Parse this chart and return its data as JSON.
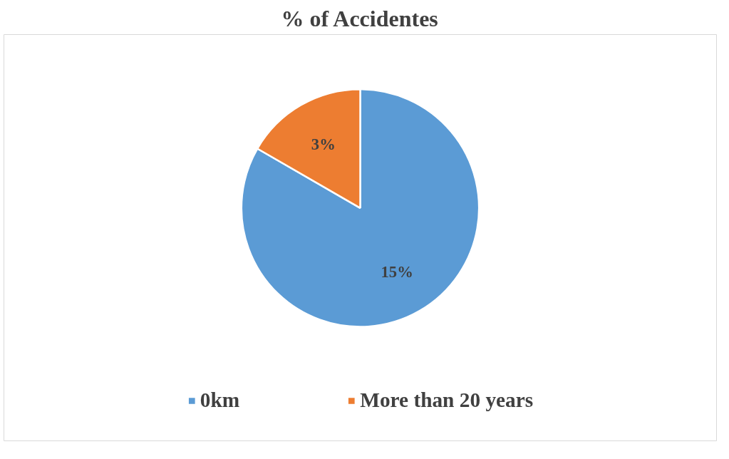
{
  "chart_data": {
    "type": "pie",
    "title": "% of Accidentes",
    "categories": [
      "0km",
      "More than 20 years"
    ],
    "values": [
      15,
      3
    ],
    "colors": [
      "#5b9bd5",
      "#ed7d31"
    ],
    "value_labels": [
      "15%",
      "3%"
    ],
    "legend": "bottom"
  }
}
